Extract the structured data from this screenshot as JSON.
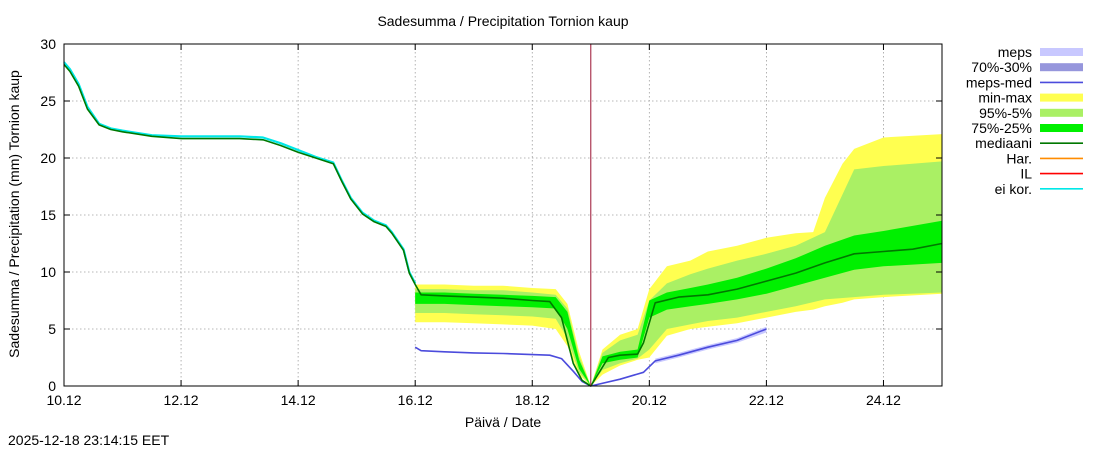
{
  "chart_data": {
    "type": "area",
    "title": "Sadesumma / Precipitation  Tornion kaup",
    "xlabel": "Päivä / Date",
    "ylabel": "Sadesumma / Precipitation (mm)  Tornion kaup",
    "timestamp": "2025-12-18 23:14:15 EET",
    "ylim": [
      0,
      30
    ],
    "xlim": [
      0,
      15
    ],
    "x_unit": "days since 10.12",
    "yticks": [
      0,
      5,
      10,
      15,
      20,
      25,
      30
    ],
    "xticks": [
      {
        "x": 0,
        "label": "10.12"
      },
      {
        "x": 2,
        "label": "12.12"
      },
      {
        "x": 4,
        "label": "14.12"
      },
      {
        "x": 6,
        "label": "16.12"
      },
      {
        "x": 8,
        "label": "18.12"
      },
      {
        "x": 10,
        "label": "20.12"
      },
      {
        "x": 12,
        "label": "22.12"
      },
      {
        "x": 14,
        "label": "24.12"
      }
    ],
    "forecast_start": 9.0,
    "legend": [
      {
        "label": "meps",
        "color": "#c8c8ff",
        "kind": "band"
      },
      {
        "label": "70%-30%",
        "color": "#9696dc",
        "kind": "band"
      },
      {
        "label": "meps-med",
        "color": "#4b4bdc",
        "kind": "line"
      },
      {
        "label": "min-max",
        "color": "#ffff50",
        "kind": "band"
      },
      {
        "label": "95%-5%",
        "color": "#aaf064",
        "kind": "band"
      },
      {
        "label": "75%-25%",
        "color": "#00f000",
        "kind": "band"
      },
      {
        "label": "mediaani",
        "color": "#007800",
        "kind": "line"
      },
      {
        "label": "Har.",
        "color": "#ff8c00",
        "kind": "line"
      },
      {
        "label": "IL",
        "color": "#ff0000",
        "kind": "line"
      },
      {
        "label": "ei kor.",
        "color": "#00e8e8",
        "kind": "line"
      }
    ],
    "series": [
      {
        "name": "ei kor.",
        "x": [
          0,
          0.1,
          0.25,
          0.4,
          0.6,
          0.8,
          1.0,
          1.5,
          2.0,
          2.5,
          3.0,
          3.4,
          3.7,
          4.0,
          4.3,
          4.6,
          4.75,
          4.9,
          5.1,
          5.3,
          5.5,
          5.6,
          5.8,
          5.9,
          6.0
        ],
        "y": [
          28.4,
          27.8,
          26.5,
          24.5,
          23.0,
          22.6,
          22.4,
          22.0,
          21.9,
          21.9,
          21.9,
          21.8,
          21.3,
          20.7,
          20.1,
          19.6,
          18.0,
          16.5,
          15.2,
          14.5,
          14.1,
          13.5,
          12.0,
          10.0,
          9.0
        ]
      },
      {
        "name": "mediaani",
        "x": [
          0,
          0.1,
          0.25,
          0.4,
          0.6,
          0.8,
          1.0,
          1.5,
          2.0,
          2.5,
          3.0,
          3.4,
          3.7,
          4.0,
          4.3,
          4.6,
          4.75,
          4.9,
          5.1,
          5.3,
          5.5,
          5.6,
          5.8,
          5.9,
          6.0,
          6.1,
          6.5,
          7.0,
          7.5,
          8.0,
          8.3,
          8.5,
          8.7,
          8.85,
          9.0,
          9.3,
          9.5,
          9.8,
          9.9,
          10.1,
          10.5,
          11.0,
          11.5,
          12.0,
          12.5,
          13.0,
          13.5,
          14.0,
          14.5,
          15.0
        ],
        "y": [
          28.2,
          27.6,
          26.3,
          24.3,
          22.9,
          22.5,
          22.3,
          21.9,
          21.7,
          21.7,
          21.7,
          21.6,
          21.1,
          20.5,
          20.0,
          19.5,
          17.9,
          16.4,
          15.1,
          14.4,
          14.0,
          13.4,
          11.9,
          9.9,
          8.9,
          8.0,
          7.9,
          7.8,
          7.7,
          7.5,
          7.4,
          6.0,
          2.0,
          0.5,
          0.0,
          2.5,
          2.7,
          2.8,
          3.8,
          7.3,
          7.8,
          8.0,
          8.5,
          9.2,
          9.9,
          10.8,
          11.6,
          11.8,
          12.0,
          12.5
        ]
      },
      {
        "name": "meps-med",
        "x": [
          6.0,
          6.1,
          6.5,
          7.0,
          7.5,
          8.0,
          8.3,
          8.5,
          8.7,
          8.85,
          9.0,
          9.5,
          9.9,
          10.1,
          10.5,
          11.0,
          11.5,
          12.0
        ],
        "y": [
          3.4,
          3.1,
          3.0,
          2.9,
          2.85,
          2.75,
          2.7,
          2.4,
          1.3,
          0.4,
          0.0,
          0.6,
          1.2,
          2.2,
          2.7,
          3.4,
          4.0,
          5.0
        ]
      },
      {
        "name": "min-max",
        "x": [
          6.0,
          6.5,
          7.0,
          7.5,
          8.0,
          8.4,
          8.6,
          8.8,
          9.0,
          9.2,
          9.5,
          9.8,
          10.0,
          10.3,
          10.7,
          11.0,
          11.5,
          12.0,
          12.5,
          12.8,
          13.0,
          13.3,
          13.5,
          14.0,
          15.0
        ],
        "low": [
          5.6,
          5.6,
          5.5,
          5.4,
          5.3,
          5.0,
          3.5,
          1.0,
          0.0,
          1.0,
          1.8,
          2.3,
          2.5,
          4.4,
          5.0,
          5.2,
          5.5,
          6.0,
          6.5,
          6.7,
          7.0,
          7.3,
          7.6,
          7.8,
          8.1
        ],
        "high": [
          8.9,
          8.9,
          8.8,
          8.8,
          8.6,
          8.5,
          7.2,
          3.0,
          0.0,
          3.2,
          4.5,
          5.0,
          8.5,
          10.5,
          11.0,
          11.8,
          12.3,
          13.0,
          13.4,
          13.5,
          16.5,
          19.5,
          20.8,
          21.8,
          22.1
        ]
      },
      {
        "name": "95%-5%",
        "x": [
          6.0,
          6.5,
          7.0,
          7.5,
          8.0,
          8.4,
          8.6,
          8.8,
          9.0,
          9.2,
          9.5,
          9.8,
          10.0,
          10.3,
          10.7,
          11.0,
          11.5,
          12.0,
          12.5,
          13.0,
          13.5,
          14.0,
          15.0
        ],
        "low": [
          6.4,
          6.4,
          6.3,
          6.2,
          6.1,
          5.9,
          4.2,
          1.2,
          0.0,
          1.4,
          2.0,
          2.4,
          3.2,
          5.0,
          5.4,
          5.7,
          6.0,
          6.5,
          7.0,
          7.6,
          7.8,
          8.0,
          8.2
        ],
        "high": [
          8.5,
          8.5,
          8.4,
          8.4,
          8.2,
          8.0,
          6.8,
          2.6,
          0.0,
          2.9,
          4.0,
          4.5,
          7.5,
          9.0,
          9.8,
          10.3,
          11.0,
          11.6,
          12.3,
          13.5,
          19.0,
          19.3,
          19.7
        ]
      },
      {
        "name": "75%-25%",
        "x": [
          6.0,
          6.5,
          7.0,
          7.5,
          8.0,
          8.4,
          8.6,
          8.8,
          9.0,
          9.2,
          9.5,
          9.8,
          10.0,
          10.3,
          10.7,
          11.0,
          11.5,
          12.0,
          12.5,
          13.0,
          13.5,
          14.0,
          15.0
        ],
        "low": [
          7.2,
          7.2,
          7.1,
          7.0,
          6.9,
          6.8,
          5.0,
          1.5,
          0.0,
          2.0,
          2.3,
          2.5,
          6.0,
          6.7,
          7.0,
          7.2,
          7.6,
          8.1,
          8.8,
          9.5,
          10.2,
          10.5,
          10.8
        ],
        "high": [
          8.2,
          8.2,
          8.1,
          8.0,
          7.9,
          7.8,
          6.5,
          2.3,
          0.0,
          2.6,
          3.0,
          3.2,
          7.5,
          8.2,
          8.6,
          8.9,
          9.5,
          10.3,
          11.2,
          12.3,
          13.2,
          13.6,
          14.5
        ]
      },
      {
        "name": "meps",
        "x": [
          10.1,
          10.5,
          11.0,
          11.5,
          12.0
        ],
        "low": [
          2.0,
          2.5,
          3.2,
          3.8,
          4.7
        ],
        "high": [
          2.4,
          2.9,
          3.6,
          4.2,
          5.2
        ]
      }
    ]
  }
}
